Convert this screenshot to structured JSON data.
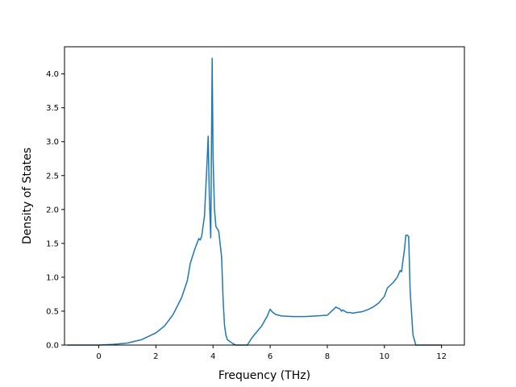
{
  "chart_data": {
    "type": "line",
    "title": "",
    "xlabel": "Frequency (THz)",
    "ylabel": "Density of States",
    "xlim": [
      -1.2,
      12.8
    ],
    "ylim": [
      0,
      4.4
    ],
    "xticks": [
      0,
      2,
      4,
      6,
      8,
      10,
      12
    ],
    "yticks": [
      0.0,
      0.5,
      1.0,
      1.5,
      2.0,
      2.5,
      3.0,
      3.5,
      4.0
    ],
    "xtick_labels": [
      "0",
      "2",
      "4",
      "6",
      "8",
      "10",
      "12"
    ],
    "ytick_labels": [
      "0.0",
      "0.5",
      "1.0",
      "1.5",
      "2.0",
      "2.5",
      "3.0",
      "3.5",
      "4.0"
    ],
    "grid": false,
    "line_color": "#1f77b4",
    "series": [
      {
        "x": [
          -1.1,
          -0.5,
          0.0,
          0.5,
          1.0,
          1.5,
          2.0,
          2.3,
          2.6,
          2.9,
          3.1,
          3.2,
          3.35,
          3.5,
          3.55,
          3.6,
          3.7,
          3.78,
          3.83,
          3.87,
          3.92,
          3.97,
          4.0,
          4.05,
          4.1,
          4.2,
          4.3,
          4.35,
          4.4,
          4.45,
          4.5,
          4.6,
          4.7,
          4.8,
          4.9,
          5.2,
          5.35,
          5.5,
          5.7,
          5.9,
          6.0,
          6.05,
          6.1,
          6.2,
          6.4,
          6.8,
          7.2,
          7.6,
          8.0,
          8.15,
          8.3,
          8.45,
          8.5,
          8.55,
          8.6,
          8.7,
          8.8,
          8.9,
          9.0,
          9.2,
          9.4,
          9.6,
          9.8,
          10.0,
          10.1,
          10.2,
          10.3,
          10.45,
          10.55,
          10.6,
          10.65,
          10.7,
          10.75,
          10.8,
          10.85,
          10.9,
          11.0,
          11.1,
          11.5,
          12.0
        ],
        "y": [
          0.0,
          0.0,
          0.0,
          0.01,
          0.03,
          0.08,
          0.18,
          0.28,
          0.45,
          0.7,
          0.95,
          1.2,
          1.4,
          1.57,
          1.55,
          1.6,
          1.9,
          2.6,
          3.08,
          2.2,
          1.58,
          4.23,
          2.8,
          2.0,
          1.75,
          1.68,
          1.3,
          0.7,
          0.3,
          0.15,
          0.08,
          0.05,
          0.02,
          0.0,
          0.0,
          0.0,
          0.1,
          0.18,
          0.28,
          0.43,
          0.53,
          0.5,
          0.48,
          0.45,
          0.43,
          0.42,
          0.42,
          0.43,
          0.44,
          0.5,
          0.56,
          0.53,
          0.5,
          0.52,
          0.5,
          0.48,
          0.48,
          0.47,
          0.48,
          0.49,
          0.52,
          0.56,
          0.62,
          0.72,
          0.84,
          0.88,
          0.92,
          1.0,
          1.1,
          1.08,
          1.25,
          1.4,
          1.62,
          1.62,
          1.6,
          0.8,
          0.15,
          0.0,
          0.0,
          0.0
        ]
      }
    ]
  }
}
